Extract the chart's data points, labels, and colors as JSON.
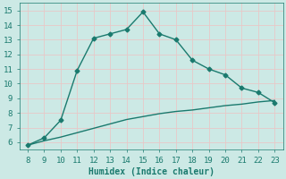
{
  "x_upper": [
    8,
    9,
    10,
    11,
    12,
    13,
    14,
    15,
    16,
    17,
    18,
    19,
    20,
    21,
    22,
    23
  ],
  "y_upper": [
    5.8,
    6.3,
    7.5,
    10.9,
    13.1,
    13.4,
    13.7,
    14.9,
    13.4,
    13.0,
    11.6,
    11.0,
    10.6,
    9.7,
    9.4,
    8.7
  ],
  "x_lower": [
    8,
    9,
    10,
    11,
    12,
    13,
    14,
    15,
    16,
    17,
    18,
    19,
    20,
    21,
    22,
    23
  ],
  "y_lower": [
    5.8,
    6.1,
    6.35,
    6.65,
    6.95,
    7.25,
    7.55,
    7.75,
    7.95,
    8.1,
    8.2,
    8.35,
    8.5,
    8.6,
    8.75,
    8.85
  ],
  "line_color": "#1a7a6e",
  "bg_color": "#cce9e5",
  "grid_color": "#e8c8c8",
  "xlabel": "Humidex (Indice chaleur)",
  "xlim": [
    7.5,
    23.5
  ],
  "ylim": [
    5.5,
    15.5
  ],
  "xticks": [
    8,
    9,
    10,
    11,
    12,
    13,
    14,
    15,
    16,
    17,
    18,
    19,
    20,
    21,
    22,
    23
  ],
  "yticks": [
    6,
    7,
    8,
    9,
    10,
    11,
    12,
    13,
    14,
    15
  ],
  "marker": "D",
  "markersize": 2.5,
  "linewidth": 1.0,
  "font_size": 6.5,
  "xlabel_fontsize": 7.0
}
